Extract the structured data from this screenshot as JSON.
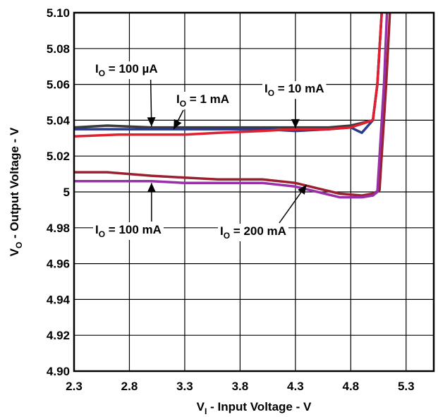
{
  "chart_data": {
    "type": "line",
    "xlabel": {
      "main": "V",
      "sub": "I",
      "rest": " - Input Voltage - V"
    },
    "ylabel": {
      "main": "V",
      "sub": "O",
      "rest": " - Output Voltage - V"
    },
    "xlim": [
      2.3,
      5.55
    ],
    "ylim": [
      4.9,
      5.1
    ],
    "x_ticks": [
      "2.3",
      "2.8",
      "3.3",
      "3.8",
      "4.3",
      "4.8",
      "5.3"
    ],
    "y_ticks": [
      "5.10",
      "5.08",
      "5.06",
      "5.04",
      "5.02",
      "5",
      "4.98",
      "4.96",
      "4.94",
      "4.92",
      "4.90"
    ],
    "grid": true,
    "series": [
      {
        "name": "I_O = 100 µA",
        "color": "#3a3a3a",
        "x": [
          2.3,
          2.6,
          3.0,
          3.3,
          3.6,
          4.0,
          4.3,
          4.6,
          4.8,
          5.0,
          5.04,
          5.08,
          5.11
        ],
        "y": [
          5.036,
          5.037,
          5.036,
          5.036,
          5.036,
          5.036,
          5.036,
          5.036,
          5.037,
          5.04,
          5.06,
          5.1,
          5.12
        ]
      },
      {
        "name": "I_O = 1 mA",
        "color": "#2a3a8c",
        "x": [
          2.3,
          2.6,
          3.0,
          3.3,
          3.6,
          4.0,
          4.3,
          4.6,
          4.8,
          4.9,
          5.0,
          5.04,
          5.08,
          5.11
        ],
        "y": [
          5.035,
          5.035,
          5.035,
          5.035,
          5.035,
          5.035,
          5.034,
          5.035,
          5.036,
          5.033,
          5.04,
          5.06,
          5.1,
          5.12
        ]
      },
      {
        "name": "I_O = 10 mA",
        "color": "#e02030",
        "x": [
          2.3,
          2.7,
          3.0,
          3.3,
          3.6,
          4.0,
          4.3,
          4.6,
          4.8,
          5.0,
          5.04,
          5.08,
          5.11
        ],
        "y": [
          5.031,
          5.032,
          5.032,
          5.032,
          5.033,
          5.034,
          5.035,
          5.035,
          5.036,
          5.04,
          5.06,
          5.1,
          5.12
        ]
      },
      {
        "name": "I_O = 100 mA",
        "color": "#9a2030",
        "x": [
          2.3,
          2.6,
          3.0,
          3.3,
          3.6,
          4.0,
          4.3,
          4.5,
          4.7,
          4.9,
          5.0,
          5.06,
          5.12,
          5.17
        ],
        "y": [
          5.011,
          5.011,
          5.009,
          5.008,
          5.007,
          5.007,
          5.005,
          5.002,
          4.999,
          4.998,
          4.999,
          5.001,
          5.06,
          5.12
        ]
      },
      {
        "name": "I_O = 200 mA",
        "color": "#9a30a8",
        "x": [
          2.3,
          2.6,
          3.0,
          3.3,
          3.6,
          4.0,
          4.3,
          4.5,
          4.7,
          4.9,
          5.0,
          5.04,
          5.1,
          5.14
        ],
        "y": [
          5.006,
          5.006,
          5.006,
          5.005,
          5.005,
          5.005,
          5.003,
          5.0,
          4.997,
          4.997,
          4.998,
          5.0,
          5.06,
          5.12
        ]
      }
    ],
    "annotations": [
      {
        "label": {
          "main": "I",
          "sub": "O",
          "rest": " = 100 µA"
        },
        "arrow_to": [
          3.0,
          5.0365
        ]
      },
      {
        "label": {
          "main": "I",
          "sub": "O",
          "rest": " = 1 mA"
        },
        "arrow_to": [
          3.2,
          5.035
        ]
      },
      {
        "label": {
          "main": "I",
          "sub": "O",
          "rest": " = 10 mA"
        },
        "arrow_to": [
          4.3,
          5.0355
        ]
      },
      {
        "label": {
          "main": "I",
          "sub": "O",
          "rest": " = 100 mA"
        },
        "arrow_to": [
          3.0,
          5.005
        ]
      },
      {
        "label": {
          "main": "I",
          "sub": "O",
          "rest": " = 200 mA"
        },
        "arrow_to": [
          4.4,
          5.004
        ]
      }
    ]
  }
}
